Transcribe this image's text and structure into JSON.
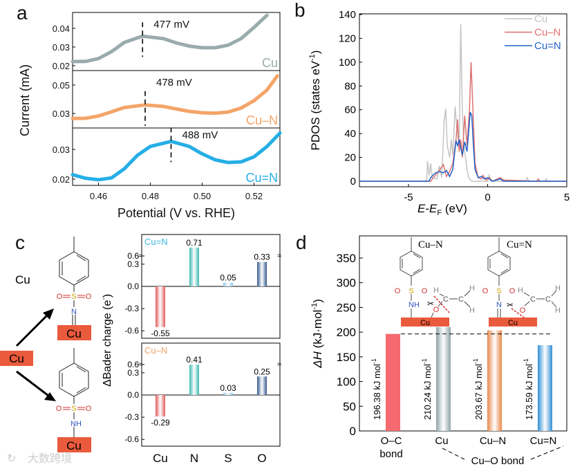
{
  "figure": {
    "panel_labels": {
      "a": "a",
      "b": "b",
      "c": "c",
      "d": "d"
    },
    "watermark": "大数跨境"
  },
  "diagram_c": {
    "free_cu": "Cu",
    "cu_box": "Cu",
    "s": "S",
    "o": "O",
    "n": "N",
    "nh": "NH"
  },
  "diagram_d": {
    "title_left": "Cu–N",
    "title_right": "Cu=N",
    "cu": "Cu",
    "s": "S",
    "o": "O",
    "nh": "NH",
    "n": "N",
    "c": "C",
    "h": "H"
  },
  "chart_data": [
    {
      "panel": "a",
      "type": "line",
      "xlabel": "Potential (V vs. RHE)",
      "ylabel": "Current (mA)",
      "xlim": [
        0.45,
        0.53
      ],
      "xticks": [
        "0.46",
        "0.48",
        "0.50",
        "0.52"
      ],
      "subplots": [
        {
          "name": "Cu",
          "color": "#9aabad",
          "ylim": [
            0.0174,
            0.0485
          ],
          "yticks": [
            "0.02",
            "0.03",
            "0.04"
          ],
          "peak": 0.477,
          "peak_label": "477 mV",
          "points": [
            [
              0.45,
              0.0222
            ],
            [
              0.455,
              0.0223
            ],
            [
              0.46,
              0.0238
            ],
            [
              0.465,
              0.0275
            ],
            [
              0.47,
              0.0325
            ],
            [
              0.477,
              0.0358
            ],
            [
              0.485,
              0.0345
            ],
            [
              0.49,
              0.0322
            ],
            [
              0.495,
              0.0305
            ],
            [
              0.5,
              0.0296
            ],
            [
              0.505,
              0.0296
            ],
            [
              0.51,
              0.031
            ],
            [
              0.515,
              0.0345
            ],
            [
              0.52,
              0.0405
            ],
            [
              0.525,
              0.047
            ]
          ]
        },
        {
          "name": "Cu–N",
          "color": "#f4a468",
          "ylim": [
            0.0198,
            0.0602
          ],
          "yticks": [
            "0.03",
            "0.05"
          ],
          "peak": 0.478,
          "peak_label": "478 mV",
          "points": [
            [
              0.45,
              0.0265
            ],
            [
              0.455,
              0.0266
            ],
            [
              0.46,
              0.0282
            ],
            [
              0.465,
              0.0312
            ],
            [
              0.47,
              0.0342
            ],
            [
              0.478,
              0.036
            ],
            [
              0.485,
              0.035
            ],
            [
              0.49,
              0.0332
            ],
            [
              0.495,
              0.0315
            ],
            [
              0.5,
              0.0305
            ],
            [
              0.505,
              0.0302
            ],
            [
              0.51,
              0.031
            ],
            [
              0.515,
              0.0338
            ],
            [
              0.52,
              0.039
            ],
            [
              0.525,
              0.0465
            ],
            [
              0.529,
              0.0565
            ]
          ]
        },
        {
          "name": "Cu=N",
          "color": "#25aee6",
          "ylim": [
            0.0179,
            0.0372
          ],
          "yticks": [
            "0.02",
            "0.03"
          ],
          "peak": 0.488,
          "peak_label": "488 mV",
          "points": [
            [
              0.45,
              0.0215
            ],
            [
              0.455,
              0.0203
            ],
            [
              0.46,
              0.0198
            ],
            [
              0.465,
              0.0204
            ],
            [
              0.47,
              0.0235
            ],
            [
              0.475,
              0.028
            ],
            [
              0.48,
              0.031
            ],
            [
              0.488,
              0.0327
            ],
            [
              0.495,
              0.031
            ],
            [
              0.5,
              0.0285
            ],
            [
              0.505,
              0.0265
            ],
            [
              0.51,
              0.0256
            ],
            [
              0.515,
              0.0258
            ],
            [
              0.52,
              0.0275
            ],
            [
              0.525,
              0.031
            ],
            [
              0.53,
              0.0355
            ]
          ]
        }
      ]
    },
    {
      "panel": "b",
      "type": "line",
      "xlabel_main": "E",
      "xlabel_sep": "-",
      "xlabel_sub_main": "E",
      "xlabel_sub": "F",
      "xlabel_unit": " (eV)",
      "ylabel": "PDOS (states eV",
      "ylabel_sup": "-1",
      "ylabel_end": ")",
      "xlim": [
        -8.1,
        5
      ],
      "ylim": [
        -4,
        140
      ],
      "xticks": [
        -5,
        0,
        5
      ],
      "yticks": [
        0,
        20,
        40,
        60,
        80,
        100,
        120,
        140
      ],
      "legend": "top-right",
      "series": [
        {
          "name": "Cu",
          "color": "#c4c4c4",
          "points": [
            [
              -8.1,
              0
            ],
            [
              -4,
              0
            ],
            [
              -3.85,
              1
            ],
            [
              -3.8,
              17
            ],
            [
              -3.7,
              5
            ],
            [
              -3.6,
              15
            ],
            [
              -3.5,
              3
            ],
            [
              -3.2,
              2
            ],
            [
              -3.05,
              13
            ],
            [
              -2.9,
              3
            ],
            [
              -2.75,
              50
            ],
            [
              -2.65,
              61
            ],
            [
              -2.55,
              30
            ],
            [
              -2.4,
              20
            ],
            [
              -2.3,
              35
            ],
            [
              -2.2,
              22
            ],
            [
              -2.05,
              63
            ],
            [
              -1.95,
              45
            ],
            [
              -1.8,
              30
            ],
            [
              -1.7,
              132
            ],
            [
              -1.6,
              60
            ],
            [
              -1.5,
              30
            ],
            [
              -1.3,
              10
            ],
            [
              -1.2,
              3
            ],
            [
              -1.0,
              0
            ],
            [
              0,
              0
            ],
            [
              0.1,
              5
            ],
            [
              0.2,
              0
            ],
            [
              2.4,
              0
            ],
            [
              2.5,
              3
            ],
            [
              2.6,
              0
            ],
            [
              3.6,
              0
            ],
            [
              3.7,
              2
            ],
            [
              3.8,
              0
            ],
            [
              5,
              0
            ]
          ]
        },
        {
          "name": "Cu–N",
          "color": "#e07070",
          "points": [
            [
              -8.1,
              0
            ],
            [
              -3.6,
              0
            ],
            [
              -3.3,
              5
            ],
            [
              -3.0,
              10
            ],
            [
              -2.8,
              14
            ],
            [
              -2.6,
              4
            ],
            [
              -2.4,
              8
            ],
            [
              -2.2,
              15
            ],
            [
              -2.0,
              35
            ],
            [
              -1.9,
              52
            ],
            [
              -1.8,
              25
            ],
            [
              -1.7,
              35
            ],
            [
              -1.6,
              20
            ],
            [
              -1.45,
              55
            ],
            [
              -1.3,
              30
            ],
            [
              -1.15,
              60
            ],
            [
              -1.05,
              100
            ],
            [
              -0.9,
              50
            ],
            [
              -0.8,
              15
            ],
            [
              -0.6,
              3
            ],
            [
              -0.4,
              2
            ],
            [
              -0.3,
              5
            ],
            [
              -0.1,
              1
            ],
            [
              0.1,
              3
            ],
            [
              0.3,
              0
            ],
            [
              0.8,
              3
            ],
            [
              1.0,
              1
            ],
            [
              3.1,
              0
            ],
            [
              3.2,
              2
            ],
            [
              3.3,
              0
            ],
            [
              5,
              0
            ]
          ]
        },
        {
          "name": "Cu=N",
          "color": "#2060c8",
          "points": [
            [
              -8.1,
              0
            ],
            [
              -3.7,
              0
            ],
            [
              -3.6,
              3
            ],
            [
              -3.3,
              7
            ],
            [
              -3.0,
              8
            ],
            [
              -2.8,
              7
            ],
            [
              -2.6,
              9
            ],
            [
              -2.4,
              4
            ],
            [
              -2.2,
              10
            ],
            [
              -2.0,
              34
            ],
            [
              -1.9,
              30
            ],
            [
              -1.8,
              35
            ],
            [
              -1.7,
              28
            ],
            [
              -1.6,
              22
            ],
            [
              -1.45,
              33
            ],
            [
              -1.3,
              25
            ],
            [
              -1.1,
              58
            ],
            [
              -1.0,
              55
            ],
            [
              -0.9,
              30
            ],
            [
              -0.8,
              10
            ],
            [
              -0.6,
              3
            ],
            [
              -0.4,
              4
            ],
            [
              -0.2,
              2
            ],
            [
              0.0,
              3
            ],
            [
              0.3,
              0
            ],
            [
              0.8,
              2
            ],
            [
              1.0,
              0
            ],
            [
              5,
              0
            ]
          ]
        }
      ]
    },
    {
      "panel": "c",
      "type": "bar",
      "ylabel": "ΔBader charge (e",
      "ylabel_sup": "-",
      "ylabel_end": ")",
      "categories": [
        "Cu",
        "N",
        "S",
        "O"
      ],
      "colors": [
        "#e05a5a",
        "#3fb8b0",
        "#8cc4ea",
        "#36598f"
      ],
      "yticks": [
        "-0.6",
        "-0.3",
        "0.0",
        "0.3",
        "0.6"
      ],
      "axis_break": [
        0.3,
        0.6
      ],
      "subplots": [
        {
          "name": "Cu=N",
          "color": "#3cb4dc",
          "values": [
            -0.55,
            0.71,
            0.05,
            0.33
          ],
          "labels": [
            "-0.55",
            "0.71",
            "0.05",
            "0.33"
          ]
        },
        {
          "name": "Cu–N",
          "color": "#f0a468",
          "values": [
            -0.29,
            0.41,
            0.03,
            0.25
          ],
          "labels": [
            "-0.29",
            "0.41",
            "0.03",
            "0.25"
          ]
        }
      ]
    },
    {
      "panel": "d",
      "type": "bar",
      "ylabel_main": "ΔH",
      "ylabel_unit": " (kJ·mol",
      "ylabel_sup": "-1",
      "ylabel_end": ")",
      "ylim": [
        0,
        395
      ],
      "yticks": [
        0,
        50,
        100,
        150,
        200,
        250,
        300,
        350
      ],
      "categories": [
        "O–C",
        "Cu",
        "Cu–N",
        "Cu=N"
      ],
      "category_sublabels": [
        "bond",
        "",
        "",
        ""
      ],
      "group_label": "Cu–O bond",
      "values": [
        196.38,
        210.24,
        203.67,
        173.59
      ],
      "value_labels": [
        "196.38 kJ mol",
        "210.24 kJ mol",
        "203.67 kJ mol",
        "173.59 kJ mol"
      ],
      "value_label_sup": "-1",
      "colors": [
        "#f46a6e",
        "#8fa3a8",
        "#e8874a",
        "#2f8fd3"
      ],
      "reference_line": 196.38
    }
  ]
}
